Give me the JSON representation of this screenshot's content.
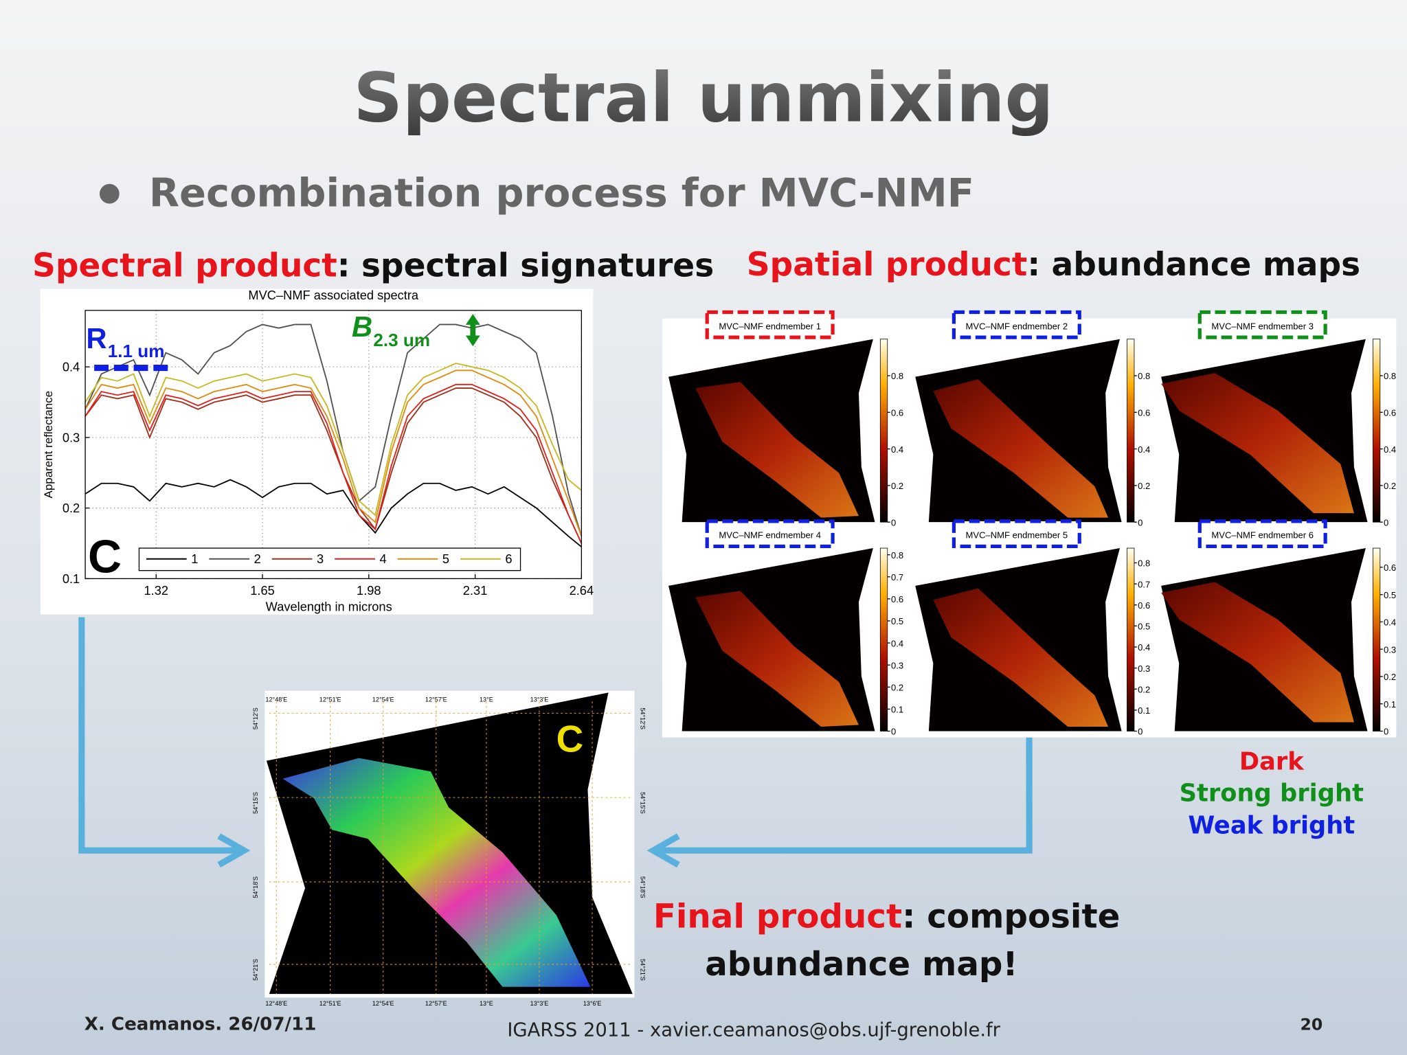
{
  "title": "Spectral unmixing",
  "bullet": "Recombination process for MVC-NMF",
  "spectral_heading": {
    "highlight": "Spectral product",
    "rest": ": spectral signatures"
  },
  "spatial_heading": {
    "highlight": "Spatial product",
    "rest": ": abundance maps"
  },
  "final_heading": {
    "highlight": "Final product",
    "rest": ": composite",
    "line2": "abundance map!"
  },
  "class_notes": [
    "Dark",
    "Strong bright",
    "Weak bright"
  ],
  "footer": {
    "left": "X. Ceamanos. 26/07/11",
    "center": "IGARSS 2011 - xavier.ceamanos@obs.ujf-grenoble.fr",
    "page": "20"
  },
  "chart_data": {
    "type": "line",
    "title": "MVC–NMF associated spectra",
    "x_label": "Wavelength in microns",
    "y_label": "Apparent reflectance",
    "annotations": [
      "R",
      "1.1 um",
      "B",
      "2.3 um",
      "C"
    ],
    "x": [
      1.1,
      1.15,
      1.2,
      1.25,
      1.3,
      1.35,
      1.4,
      1.45,
      1.5,
      1.55,
      1.6,
      1.65,
      1.7,
      1.75,
      1.8,
      1.85,
      1.9,
      1.95,
      2.0,
      2.05,
      2.1,
      2.15,
      2.2,
      2.25,
      2.3,
      2.35,
      2.4,
      2.45,
      2.5,
      2.55,
      2.6,
      2.64
    ],
    "series": [
      {
        "name": "1",
        "color": "#000000",
        "values": [
          0.22,
          0.235,
          0.235,
          0.23,
          0.21,
          0.235,
          0.23,
          0.235,
          0.23,
          0.24,
          0.23,
          0.215,
          0.23,
          0.235,
          0.235,
          0.22,
          0.225,
          0.19,
          0.165,
          0.2,
          0.22,
          0.235,
          0.235,
          0.225,
          0.23,
          0.22,
          0.23,
          0.215,
          0.2,
          0.18,
          0.16,
          0.145
        ]
      },
      {
        "name": "2",
        "color": "#505050",
        "values": [
          0.34,
          0.39,
          0.4,
          0.41,
          0.36,
          0.42,
          0.41,
          0.39,
          0.42,
          0.43,
          0.45,
          0.46,
          0.455,
          0.46,
          0.46,
          0.38,
          0.28,
          0.21,
          0.23,
          0.33,
          0.42,
          0.44,
          0.46,
          0.46,
          0.455,
          0.46,
          0.45,
          0.44,
          0.42,
          0.33,
          0.22,
          0.16
        ]
      },
      {
        "name": "3",
        "color": "#a0301a",
        "values": [
          0.33,
          0.36,
          0.355,
          0.36,
          0.3,
          0.355,
          0.35,
          0.34,
          0.35,
          0.355,
          0.36,
          0.35,
          0.355,
          0.36,
          0.36,
          0.31,
          0.25,
          0.2,
          0.17,
          0.25,
          0.32,
          0.35,
          0.36,
          0.37,
          0.37,
          0.36,
          0.35,
          0.33,
          0.3,
          0.24,
          0.19,
          0.15
        ]
      },
      {
        "name": "4",
        "color": "#e0201a",
        "values": [
          0.33,
          0.365,
          0.36,
          0.365,
          0.31,
          0.36,
          0.355,
          0.345,
          0.355,
          0.36,
          0.365,
          0.355,
          0.36,
          0.365,
          0.365,
          0.32,
          0.25,
          0.19,
          0.17,
          0.26,
          0.33,
          0.355,
          0.365,
          0.375,
          0.375,
          0.365,
          0.355,
          0.34,
          0.31,
          0.25,
          0.19,
          0.15
        ]
      },
      {
        "name": "5",
        "color": "#e08a10",
        "values": [
          0.34,
          0.375,
          0.37,
          0.375,
          0.32,
          0.37,
          0.365,
          0.355,
          0.365,
          0.37,
          0.375,
          0.365,
          0.37,
          0.375,
          0.37,
          0.33,
          0.27,
          0.2,
          0.18,
          0.28,
          0.35,
          0.375,
          0.385,
          0.395,
          0.395,
          0.385,
          0.375,
          0.36,
          0.33,
          0.27,
          0.21,
          0.16
        ]
      },
      {
        "name": "6",
        "color": "#c8b820",
        "values": [
          0.35,
          0.385,
          0.38,
          0.39,
          0.33,
          0.385,
          0.38,
          0.37,
          0.38,
          0.385,
          0.39,
          0.38,
          0.385,
          0.39,
          0.385,
          0.345,
          0.28,
          0.21,
          0.19,
          0.29,
          0.36,
          0.385,
          0.395,
          0.405,
          0.4,
          0.395,
          0.385,
          0.37,
          0.345,
          0.29,
          0.24,
          0.225
        ]
      }
    ],
    "xlim": [
      1.1,
      2.64
    ],
    "ylim": [
      0.1,
      0.48
    ],
    "xticks": [
      1.32,
      1.65,
      1.98,
      2.31,
      2.64
    ],
    "yticks": [
      0.1,
      0.2,
      0.3,
      0.4
    ],
    "grid": true
  },
  "maps": [
    {
      "label": "MVC–NMF endmember 1",
      "color": "#e8141c",
      "clim": [
        0,
        1
      ],
      "ticks": [
        0,
        0.2,
        0.4,
        0.6,
        0.8
      ]
    },
    {
      "label": "MVC–NMF endmember 2",
      "color": "#1020e0",
      "clim": [
        0,
        1
      ],
      "ticks": [
        0,
        0.2,
        0.4,
        0.6,
        0.8
      ]
    },
    {
      "label": "MVC–NMF endmember 3",
      "color": "#10901a",
      "clim": [
        0,
        1
      ],
      "ticks": [
        0,
        0.2,
        0.4,
        0.6,
        0.8
      ]
    },
    {
      "label": "MVC–NMF endmember 4",
      "color": "#1020e0",
      "clim": [
        0,
        0.83
      ],
      "ticks": [
        0,
        0.1,
        0.2,
        0.3,
        0.4,
        0.5,
        0.6,
        0.7,
        0.8
      ]
    },
    {
      "label": "MVC–NMF endmember 5",
      "color": "#1020e0",
      "clim": [
        0,
        0.87
      ],
      "ticks": [
        0,
        0.1,
        0.2,
        0.3,
        0.4,
        0.5,
        0.6,
        0.7,
        0.8
      ]
    },
    {
      "label": "MVC–NMF endmember 6",
      "color": "#1020e0",
      "clim": [
        0,
        0.67
      ],
      "ticks": [
        0,
        0.1,
        0.2,
        0.3,
        0.4,
        0.5,
        0.6
      ]
    }
  ],
  "composite": {
    "letter": "C",
    "lon_labels": [
      "12°48'E",
      "12°51'E",
      "12°54'E",
      "12°57'E",
      "13°E",
      "13°3'E",
      "13°6'E"
    ],
    "lat_labels": [
      "54°12'S",
      "54°15'S",
      "54°18'S",
      "54°21'S"
    ]
  }
}
